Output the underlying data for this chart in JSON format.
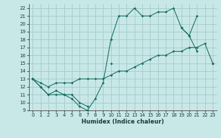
{
  "xlabel": "Humidex (Indice chaleur)",
  "xlim": [
    -0.5,
    23.5
  ],
  "ylim": [
    9,
    22.5
  ],
  "yticks": [
    9,
    10,
    11,
    12,
    13,
    14,
    15,
    16,
    17,
    18,
    19,
    20,
    21,
    22
  ],
  "xticks": [
    0,
    1,
    2,
    3,
    4,
    5,
    6,
    7,
    8,
    9,
    10,
    11,
    12,
    13,
    14,
    15,
    16,
    17,
    18,
    19,
    20,
    21,
    22,
    23
  ],
  "bg_color": "#c8e8e8",
  "grid_color": "#a8cccc",
  "line_color": "#1a6e64",
  "line1_y": [
    13,
    12,
    11,
    11,
    11,
    10.5,
    9.5,
    9,
    10.5,
    12.5,
    18,
    21,
    21,
    22,
    21,
    21,
    21.5,
    21.5,
    22,
    19.5,
    18.5,
    21,
    null,
    null
  ],
  "line2_y": [
    13,
    12,
    11,
    11.5,
    11,
    11,
    10,
    9.5,
    null,
    null,
    15,
    null,
    null,
    null,
    null,
    null,
    null,
    null,
    null,
    19.5,
    18.5,
    16.5,
    null,
    15
  ],
  "line3_y": [
    13,
    12.5,
    12,
    12.5,
    12.5,
    12.5,
    13,
    13,
    13,
    13,
    13.5,
    14,
    14,
    14.5,
    15,
    15.5,
    16,
    16,
    16.5,
    16.5,
    17,
    17,
    17.5,
    15
  ]
}
